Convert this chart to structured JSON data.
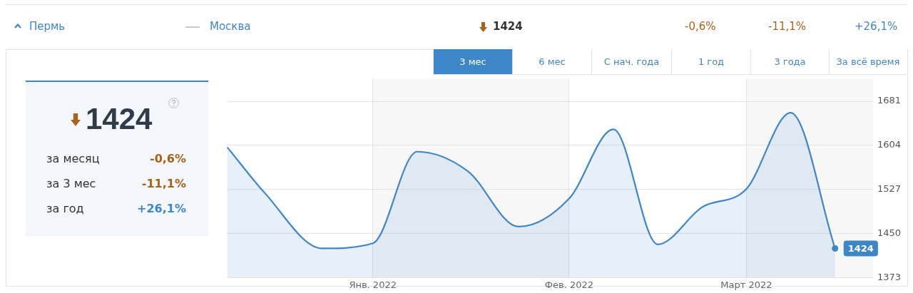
{
  "chart_data": {
    "type": "area",
    "x": [
      "2021-12-09",
      "2021-12-15",
      "2021-12-24",
      "2022-01-01",
      "2022-01-08",
      "2022-01-16",
      "2022-01-24",
      "2022-02-01",
      "2022-02-08",
      "2022-02-15",
      "2022-02-22",
      "2022-03-01",
      "2022-03-08",
      "2022-03-15"
    ],
    "series": [
      {
        "color": "#3d87c8",
        "values": [
          1601,
          1520,
          1424,
          1433,
          1593,
          1559,
          1462,
          1511,
          1632,
          1431,
          1496,
          1528,
          1661,
          1424
        ],
        "value_labels": [
          null,
          null,
          null,
          null,
          null,
          null,
          null,
          null,
          null,
          null,
          null,
          null,
          null,
          "1424"
        ]
      }
    ],
    "xlim": [
      "2021-12-09",
      "2022-03-21"
    ],
    "xticks": [
      {
        "value": "2022-01-01",
        "label": "Янв. 2022"
      },
      {
        "value": "2022-02-01",
        "label": "Фев. 2022"
      },
      {
        "value": "2022-03-01",
        "label": "Март 2022"
      }
    ],
    "ylim": [
      1373,
      1720
    ],
    "yticks": [
      1373,
      1450,
      1527,
      1604,
      1681
    ],
    "grid": true,
    "legend": false,
    "bands": [
      {
        "axis": "x",
        "from": "2022-01-01",
        "to": "2022-02-01",
        "color": "#f7f7f7"
      },
      {
        "axis": "x",
        "from": "2022-03-01",
        "to": "2022-03-21",
        "color": "#f7f7f7"
      }
    ],
    "annotations": [
      "Пермь",
      "Москва",
      "1424",
      "-0,6%",
      "-11,1%",
      "+26,1%",
      "3 мес",
      "6 мес",
      "С нач. года",
      "1 год",
      "3 года",
      "За всё время",
      "1424",
      "за месяц",
      "-0,6%",
      "за 3 мес",
      "-11,1%",
      "за год",
      "+26,1%"
    ]
  }
}
